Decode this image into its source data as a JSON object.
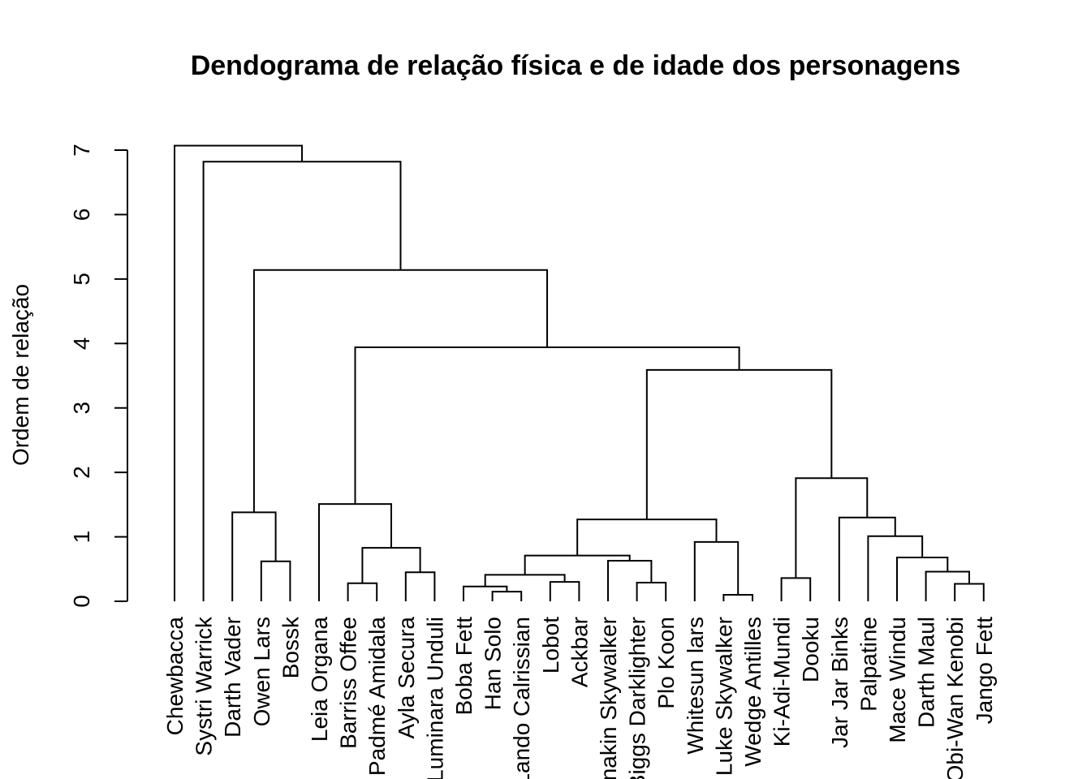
{
  "chart_data": {
    "type": "dendrogram",
    "title": "Dendograma de relação física e de idade dos personagens",
    "xlabel": "",
    "ylabel": "Ordem de relação",
    "ylim": [
      0,
      7
    ],
    "yticks": [
      0,
      1,
      2,
      3,
      4,
      5,
      6,
      7
    ],
    "leaves": [
      "Chewbacca",
      "Systri Warrick",
      "Darth Vader",
      "Owen Lars",
      "Bossk",
      "Leia Organa",
      "Barriss Offee",
      "Padmé Amidala",
      "Ayla Secura",
      "Luminara Unduli",
      "Boba Fett",
      "Han Solo",
      "Lando Calrissian",
      "Lobot",
      "Ackbar",
      "Anakin Skywalker",
      "Biggs Darklighter",
      "Plo Koon",
      "Whitesun lars",
      "Luke Skywalker",
      "Wedge Antilles",
      "Ki-Adi-Mundi",
      "Dooku",
      "Jar Jar Binks",
      "Palpatine",
      "Mace Windu",
      "Darth Maul",
      "Obi-Wan Kenobi",
      "Jango Fett"
    ],
    "merges": [
      {
        "a": "L:Owen Lars",
        "b": "L:Bossk",
        "height": 0.62
      },
      {
        "a": "L:Darth Vader",
        "b": "M:0",
        "height": 1.38
      },
      {
        "a": "L:Barriss Offee",
        "b": "L:Padmé Amidala",
        "height": 0.28
      },
      {
        "a": "L:Ayla Secura",
        "b": "L:Luminara Unduli",
        "height": 0.45
      },
      {
        "a": "M:2",
        "b": "M:3",
        "height": 0.83
      },
      {
        "a": "L:Leia Organa",
        "b": "M:4",
        "height": 1.51
      },
      {
        "a": "L:Han Solo",
        "b": "L:Lando Calrissian",
        "height": 0.15
      },
      {
        "a": "L:Boba Fett",
        "b": "M:6",
        "height": 0.23
      },
      {
        "a": "L:Lobot",
        "b": "L:Ackbar",
        "height": 0.3
      },
      {
        "a": "M:7",
        "b": "M:8",
        "height": 0.41
      },
      {
        "a": "L:Biggs Darklighter",
        "b": "L:Plo Koon",
        "height": 0.29
      },
      {
        "a": "L:Anakin Skywalker",
        "b": "M:10",
        "height": 0.63
      },
      {
        "a": "M:9",
        "b": "M:11",
        "height": 0.71
      },
      {
        "a": "L:Luke Skywalker",
        "b": "L:Wedge Antilles",
        "height": 0.1
      },
      {
        "a": "L:Whitesun lars",
        "b": "M:13",
        "height": 0.92
      },
      {
        "a": "M:12",
        "b": "M:14",
        "height": 1.27
      },
      {
        "a": "L:Ki-Adi-Mundi",
        "b": "L:Dooku",
        "height": 0.36
      },
      {
        "a": "L:Obi-Wan Kenobi",
        "b": "L:Jango Fett",
        "height": 0.27
      },
      {
        "a": "L:Darth Maul",
        "b": "M:17",
        "height": 0.46
      },
      {
        "a": "L:Mace Windu",
        "b": "M:18",
        "height": 0.68
      },
      {
        "a": "L:Palpatine",
        "b": "M:19",
        "height": 1.01
      },
      {
        "a": "L:Jar Jar Binks",
        "b": "M:20",
        "height": 1.3
      },
      {
        "a": "M:16",
        "b": "M:21",
        "height": 1.91
      },
      {
        "a": "M:15",
        "b": "M:22",
        "height": 3.59
      },
      {
        "a": "M:5",
        "b": "M:23",
        "height": 3.94
      },
      {
        "a": "M:1",
        "b": "M:24",
        "height": 5.14
      },
      {
        "a": "L:Systri Warrick",
        "b": "M:25",
        "height": 6.82
      },
      {
        "a": "L:Chewbacca",
        "b": "M:26",
        "height": 7.07
      }
    ]
  }
}
